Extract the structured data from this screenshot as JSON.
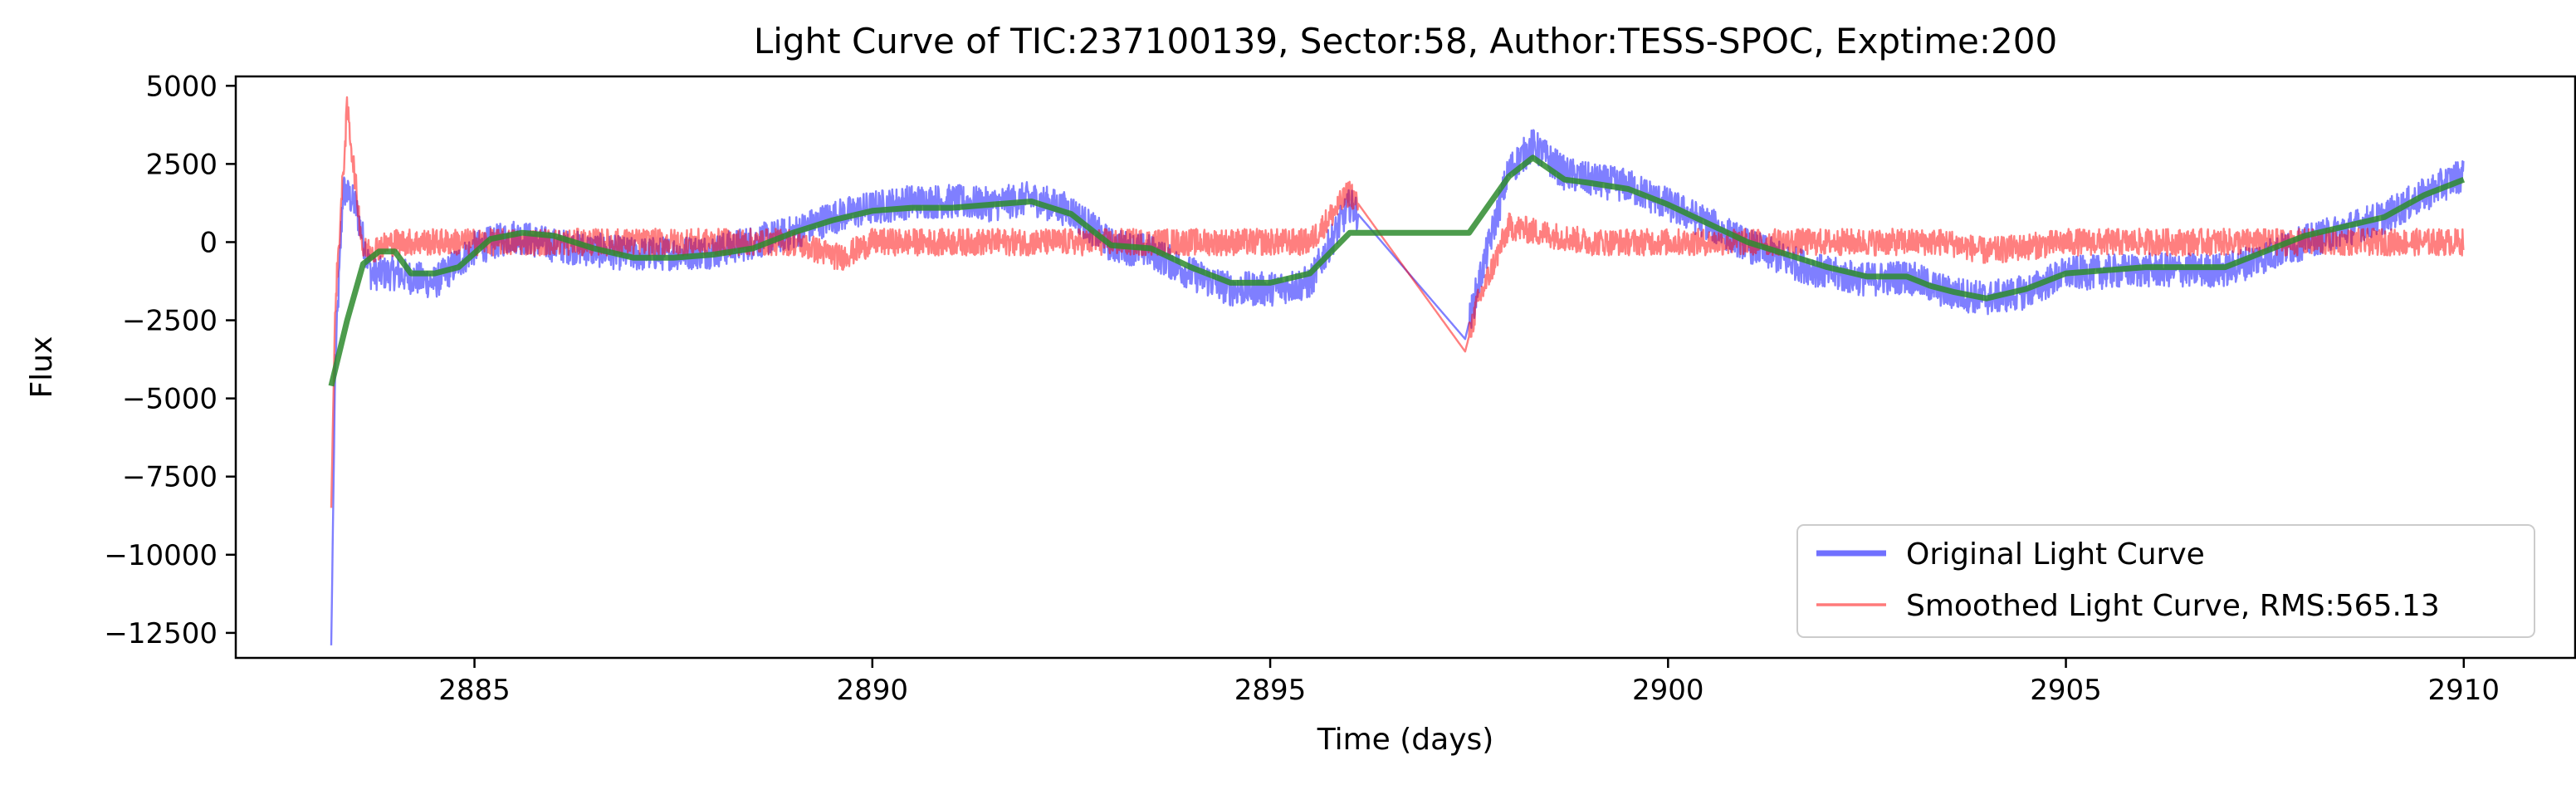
{
  "chart_data": {
    "type": "line",
    "title": "Light Curve of TIC:237100139, Sector:58, Author:TESS-SPOC, Exptime:200",
    "xlabel": "Time (days)",
    "ylabel": "Flux",
    "xlim": [
      2882.0,
      2911.4
    ],
    "ylim": [
      -13300,
      5300
    ],
    "x_ticks": [
      2885,
      2890,
      2895,
      2900,
      2905,
      2910
    ],
    "x_tick_labels": [
      "2885",
      "2890",
      "2895",
      "2900",
      "2905",
      "2910"
    ],
    "y_ticks": [
      5000,
      2500,
      0,
      -2500,
      -5000,
      -7500,
      -10000,
      -12500
    ],
    "y_tick_labels": [
      "5000",
      "2500",
      "0",
      "−2500",
      "−5000",
      "−7500",
      "−10000",
      "−12500"
    ],
    "grid": false,
    "legend_position": "lower-right",
    "legend": [
      {
        "label": "Original Light Curve",
        "color": "#7070ff"
      },
      {
        "label": "Smoothed Light Curve, RMS:565.13",
        "color": "#ff7a7a"
      }
    ],
    "series": [
      {
        "name": "Original Light Curve",
        "color": "#0000ff",
        "opacity": 0.5,
        "noise_amplitude": 550,
        "points": [
          [
            2883.2,
            -12900
          ],
          [
            2883.25,
            -4000
          ],
          [
            2883.35,
            1700
          ],
          [
            2883.5,
            1200
          ],
          [
            2883.7,
            -1000
          ],
          [
            2884.0,
            -1000
          ],
          [
            2884.5,
            -1300
          ],
          [
            2885.0,
            -200
          ],
          [
            2885.5,
            200
          ],
          [
            2886.0,
            -100
          ],
          [
            2887.0,
            -400
          ],
          [
            2888.0,
            -300
          ],
          [
            2889.0,
            300
          ],
          [
            2889.5,
            800
          ],
          [
            2890.0,
            1100
          ],
          [
            2890.5,
            1300
          ],
          [
            2891.0,
            1300
          ],
          [
            2891.5,
            1200
          ],
          [
            2892.0,
            1400
          ],
          [
            2892.5,
            1000
          ],
          [
            2893.0,
            -100
          ],
          [
            2893.5,
            -300
          ],
          [
            2894.0,
            -1000
          ],
          [
            2894.5,
            -1500
          ],
          [
            2895.0,
            -1500
          ],
          [
            2895.5,
            -1300
          ],
          [
            2896.0,
            1200
          ],
          [
            2897.45,
            -3100
          ],
          [
            2897.6,
            -1500
          ],
          [
            2898.0,
            2300
          ],
          [
            2898.3,
            3100
          ],
          [
            2898.7,
            2200
          ],
          [
            2899.0,
            2000
          ],
          [
            2899.5,
            1800
          ],
          [
            2900.0,
            1200
          ],
          [
            2900.5,
            600
          ],
          [
            2901.0,
            -100
          ],
          [
            2901.5,
            -600
          ],
          [
            2902.0,
            -1000
          ],
          [
            2902.5,
            -1200
          ],
          [
            2903.0,
            -1100
          ],
          [
            2903.5,
            -1600
          ],
          [
            2904.0,
            -1800
          ],
          [
            2904.5,
            -1600
          ],
          [
            2905.0,
            -1000
          ],
          [
            2906.0,
            -900
          ],
          [
            2907.0,
            -900
          ],
          [
            2908.0,
            0
          ],
          [
            2909.0,
            800
          ],
          [
            2909.5,
            1500
          ],
          [
            2910.0,
            2200
          ]
        ]
      },
      {
        "name": "Smoothed Light Curve, RMS:565.13",
        "color": "#ff0000",
        "opacity": 0.5,
        "noise_amplitude": 430,
        "points": [
          [
            2883.2,
            -8500
          ],
          [
            2883.25,
            -2000
          ],
          [
            2883.4,
            4300
          ],
          [
            2883.6,
            -300
          ],
          [
            2884.0,
            0
          ],
          [
            2885.0,
            0
          ],
          [
            2886.0,
            0
          ],
          [
            2887.0,
            0
          ],
          [
            2888.0,
            0
          ],
          [
            2889.0,
            0
          ],
          [
            2889.6,
            -500
          ],
          [
            2890.0,
            0
          ],
          [
            2891.0,
            0
          ],
          [
            2892.0,
            0
          ],
          [
            2893.0,
            0
          ],
          [
            2894.0,
            0
          ],
          [
            2895.0,
            0
          ],
          [
            2895.5,
            0
          ],
          [
            2896.0,
            1600
          ],
          [
            2897.45,
            -3500
          ],
          [
            2897.6,
            -2000
          ],
          [
            2898.0,
            500
          ],
          [
            2899.0,
            0
          ],
          [
            2900.0,
            0
          ],
          [
            2901.0,
            0
          ],
          [
            2902.0,
            0
          ],
          [
            2903.0,
            0
          ],
          [
            2903.5,
            0
          ],
          [
            2904.0,
            -300
          ],
          [
            2905.0,
            0
          ],
          [
            2906.0,
            0
          ],
          [
            2907.0,
            0
          ],
          [
            2908.0,
            0
          ],
          [
            2909.0,
            0
          ],
          [
            2910.0,
            0
          ]
        ]
      },
      {
        "name": "",
        "color": "#2e8b2e",
        "opacity": 0.85,
        "noise_amplitude": 0,
        "points": [
          [
            2883.2,
            -4600
          ],
          [
            2883.4,
            -2500
          ],
          [
            2883.6,
            -700
          ],
          [
            2883.8,
            -300
          ],
          [
            2884.0,
            -300
          ],
          [
            2884.2,
            -1000
          ],
          [
            2884.5,
            -1000
          ],
          [
            2884.8,
            -800
          ],
          [
            2885.2,
            100
          ],
          [
            2885.6,
            300
          ],
          [
            2886.0,
            200
          ],
          [
            2886.5,
            -200
          ],
          [
            2887.0,
            -500
          ],
          [
            2887.5,
            -500
          ],
          [
            2888.0,
            -400
          ],
          [
            2888.5,
            -200
          ],
          [
            2889.0,
            300
          ],
          [
            2889.5,
            700
          ],
          [
            2890.0,
            1000
          ],
          [
            2890.5,
            1100
          ],
          [
            2891.0,
            1100
          ],
          [
            2891.5,
            1200
          ],
          [
            2892.0,
            1300
          ],
          [
            2892.5,
            900
          ],
          [
            2893.0,
            -100
          ],
          [
            2893.5,
            -200
          ],
          [
            2894.0,
            -800
          ],
          [
            2894.5,
            -1300
          ],
          [
            2895.0,
            -1300
          ],
          [
            2895.5,
            -1000
          ],
          [
            2896.0,
            300
          ],
          [
            2897.5,
            300
          ],
          [
            2898.0,
            2100
          ],
          [
            2898.3,
            2700
          ],
          [
            2898.7,
            2000
          ],
          [
            2899.0,
            1900
          ],
          [
            2899.5,
            1700
          ],
          [
            2900.0,
            1200
          ],
          [
            2900.5,
            600
          ],
          [
            2901.0,
            0
          ],
          [
            2901.5,
            -400
          ],
          [
            2902.0,
            -800
          ],
          [
            2902.5,
            -1100
          ],
          [
            2903.0,
            -1100
          ],
          [
            2903.3,
            -1400
          ],
          [
            2903.6,
            -1600
          ],
          [
            2904.0,
            -1800
          ],
          [
            2904.5,
            -1500
          ],
          [
            2905.0,
            -1000
          ],
          [
            2906.0,
            -800
          ],
          [
            2907.0,
            -800
          ],
          [
            2908.0,
            200
          ],
          [
            2909.0,
            800
          ],
          [
            2909.5,
            1500
          ],
          [
            2910.0,
            2000
          ]
        ]
      }
    ]
  }
}
